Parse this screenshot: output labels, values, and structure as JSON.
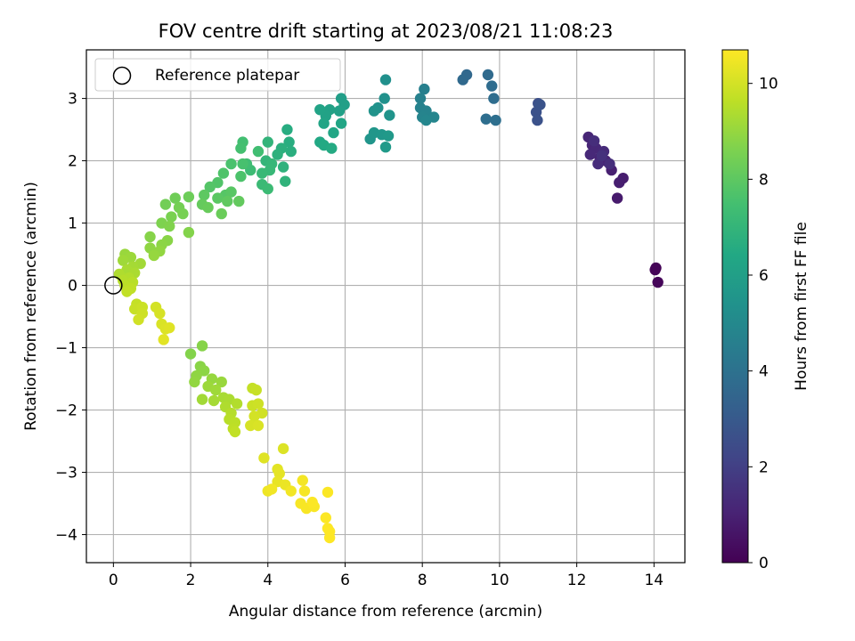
{
  "chart_data": {
    "type": "scatter",
    "title": "FOV centre drift starting at 2023/08/21 11:08:23",
    "xlabel": "Angular distance from reference (arcmin)",
    "ylabel": "Rotation from reference (arcmin)",
    "colorbar_label": "Hours from first FF file",
    "xlim": [
      -0.7,
      14.8
    ],
    "ylim": [
      -4.45,
      3.78
    ],
    "clim": [
      0,
      10.7
    ],
    "colormap": "viridis",
    "xticks": [
      0,
      2,
      4,
      6,
      8,
      10,
      12,
      14
    ],
    "yticks": [
      -4,
      -3,
      -2,
      -1,
      0,
      1,
      2,
      3
    ],
    "cticks": [
      0,
      2,
      4,
      6,
      8,
      10
    ],
    "grid": true,
    "legend": {
      "placement": "upper-left",
      "entries": [
        {
          "label": "Reference platepar",
          "marker": "hollow-circle"
        }
      ]
    },
    "reference_point": {
      "x": 0,
      "y": 0
    },
    "points": [
      {
        "x": 14.05,
        "y": 0.28,
        "t": 0.05
      },
      {
        "x": 14.03,
        "y": 0.25,
        "t": 0.1
      },
      {
        "x": 14.1,
        "y": 0.05,
        "t": 0.15
      },
      {
        "x": 13.05,
        "y": 1.4,
        "t": 0.8
      },
      {
        "x": 13.2,
        "y": 1.72,
        "t": 0.85
      },
      {
        "x": 13.1,
        "y": 1.65,
        "t": 0.9
      },
      {
        "x": 12.9,
        "y": 1.85,
        "t": 0.95
      },
      {
        "x": 12.75,
        "y": 2.0,
        "t": 1.0
      },
      {
        "x": 12.6,
        "y": 2.05,
        "t": 1.05
      },
      {
        "x": 12.4,
        "y": 2.25,
        "t": 1.1
      },
      {
        "x": 12.3,
        "y": 2.38,
        "t": 1.15
      },
      {
        "x": 12.5,
        "y": 2.2,
        "t": 1.2
      },
      {
        "x": 12.35,
        "y": 2.1,
        "t": 1.25
      },
      {
        "x": 12.7,
        "y": 2.15,
        "t": 1.3
      },
      {
        "x": 12.55,
        "y": 1.95,
        "t": 1.35
      },
      {
        "x": 12.45,
        "y": 2.32,
        "t": 1.4
      },
      {
        "x": 12.85,
        "y": 1.95,
        "t": 1.45
      },
      {
        "x": 12.65,
        "y": 2.08,
        "t": 1.5
      },
      {
        "x": 11.0,
        "y": 2.92,
        "t": 2.6
      },
      {
        "x": 10.95,
        "y": 2.78,
        "t": 2.65
      },
      {
        "x": 10.98,
        "y": 2.65,
        "t": 2.7
      },
      {
        "x": 11.05,
        "y": 2.9,
        "t": 2.75
      },
      {
        "x": 9.15,
        "y": 3.38,
        "t": 3.6
      },
      {
        "x": 9.05,
        "y": 3.3,
        "t": 3.65
      },
      {
        "x": 9.7,
        "y": 3.38,
        "t": 3.7
      },
      {
        "x": 9.8,
        "y": 3.2,
        "t": 3.75
      },
      {
        "x": 9.85,
        "y": 3.0,
        "t": 3.8
      },
      {
        "x": 9.65,
        "y": 2.67,
        "t": 3.85
      },
      {
        "x": 9.9,
        "y": 2.65,
        "t": 3.9
      },
      {
        "x": 8.05,
        "y": 3.15,
        "t": 4.6
      },
      {
        "x": 7.95,
        "y": 3.0,
        "t": 4.65
      },
      {
        "x": 7.95,
        "y": 2.85,
        "t": 4.7
      },
      {
        "x": 8.1,
        "y": 2.8,
        "t": 4.75
      },
      {
        "x": 8.0,
        "y": 2.7,
        "t": 4.8
      },
      {
        "x": 8.3,
        "y": 2.7,
        "t": 4.85
      },
      {
        "x": 8.1,
        "y": 2.65,
        "t": 4.9
      },
      {
        "x": 7.05,
        "y": 3.3,
        "t": 5.3
      },
      {
        "x": 7.02,
        "y": 3.0,
        "t": 5.35
      },
      {
        "x": 6.85,
        "y": 2.85,
        "t": 5.4
      },
      {
        "x": 6.75,
        "y": 2.8,
        "t": 5.45
      },
      {
        "x": 7.15,
        "y": 2.73,
        "t": 5.5
      },
      {
        "x": 6.65,
        "y": 2.35,
        "t": 5.55
      },
      {
        "x": 6.75,
        "y": 2.45,
        "t": 5.6
      },
      {
        "x": 6.95,
        "y": 2.42,
        "t": 5.65
      },
      {
        "x": 7.12,
        "y": 2.4,
        "t": 5.7
      },
      {
        "x": 7.05,
        "y": 2.22,
        "t": 5.75
      },
      {
        "x": 5.9,
        "y": 3.0,
        "t": 5.95
      },
      {
        "x": 5.98,
        "y": 2.9,
        "t": 6.0
      },
      {
        "x": 5.85,
        "y": 2.8,
        "t": 6.05
      },
      {
        "x": 5.6,
        "y": 2.82,
        "t": 6.1
      },
      {
        "x": 5.5,
        "y": 2.72,
        "t": 6.15
      },
      {
        "x": 5.35,
        "y": 2.82,
        "t": 6.2
      },
      {
        "x": 5.45,
        "y": 2.6,
        "t": 6.25
      },
      {
        "x": 5.9,
        "y": 2.6,
        "t": 6.3
      },
      {
        "x": 5.7,
        "y": 2.45,
        "t": 6.35
      },
      {
        "x": 5.35,
        "y": 2.3,
        "t": 6.4
      },
      {
        "x": 5.45,
        "y": 2.25,
        "t": 6.45
      },
      {
        "x": 5.65,
        "y": 2.2,
        "t": 6.5
      },
      {
        "x": 4.5,
        "y": 2.5,
        "t": 6.6
      },
      {
        "x": 4.55,
        "y": 2.3,
        "t": 6.65
      },
      {
        "x": 4.6,
        "y": 2.15,
        "t": 6.7
      },
      {
        "x": 4.35,
        "y": 2.2,
        "t": 6.75
      },
      {
        "x": 4.25,
        "y": 2.1,
        "t": 6.8
      },
      {
        "x": 4.4,
        "y": 1.9,
        "t": 6.85
      },
      {
        "x": 4.45,
        "y": 1.67,
        "t": 6.9
      },
      {
        "x": 4.0,
        "y": 2.3,
        "t": 6.95
      },
      {
        "x": 3.95,
        "y": 2.0,
        "t": 7.0
      },
      {
        "x": 4.1,
        "y": 1.95,
        "t": 7.05
      },
      {
        "x": 4.05,
        "y": 1.85,
        "t": 7.1
      },
      {
        "x": 3.85,
        "y": 1.8,
        "t": 7.15
      },
      {
        "x": 3.85,
        "y": 1.62,
        "t": 7.2
      },
      {
        "x": 4.0,
        "y": 1.55,
        "t": 7.25
      },
      {
        "x": 3.55,
        "y": 1.85,
        "t": 7.3
      },
      {
        "x": 3.45,
        "y": 1.95,
        "t": 7.35
      },
      {
        "x": 3.75,
        "y": 2.15,
        "t": 7.4
      },
      {
        "x": 3.35,
        "y": 2.3,
        "t": 7.45
      },
      {
        "x": 3.3,
        "y": 2.2,
        "t": 7.5
      },
      {
        "x": 3.35,
        "y": 1.95,
        "t": 7.55
      },
      {
        "x": 3.05,
        "y": 1.95,
        "t": 7.6
      },
      {
        "x": 3.3,
        "y": 1.75,
        "t": 7.65
      },
      {
        "x": 2.85,
        "y": 1.8,
        "t": 7.7
      },
      {
        "x": 2.7,
        "y": 1.65,
        "t": 7.75
      },
      {
        "x": 2.5,
        "y": 1.58,
        "t": 7.8
      },
      {
        "x": 2.9,
        "y": 1.45,
        "t": 7.85
      },
      {
        "x": 3.05,
        "y": 1.5,
        "t": 7.9
      },
      {
        "x": 2.7,
        "y": 1.4,
        "t": 7.95
      },
      {
        "x": 2.35,
        "y": 1.45,
        "t": 8.0
      },
      {
        "x": 2.95,
        "y": 1.35,
        "t": 8.05
      },
      {
        "x": 3.25,
        "y": 1.35,
        "t": 8.1
      },
      {
        "x": 2.3,
        "y": 1.3,
        "t": 8.15
      },
      {
        "x": 2.45,
        "y": 1.25,
        "t": 8.2
      },
      {
        "x": 2.8,
        "y": 1.15,
        "t": 8.25
      },
      {
        "x": 1.95,
        "y": 1.42,
        "t": 8.3
      },
      {
        "x": 1.6,
        "y": 1.4,
        "t": 8.35
      },
      {
        "x": 1.35,
        "y": 1.3,
        "t": 8.4
      },
      {
        "x": 1.7,
        "y": 1.25,
        "t": 8.45
      },
      {
        "x": 1.8,
        "y": 1.15,
        "t": 8.5
      },
      {
        "x": 1.5,
        "y": 1.1,
        "t": 8.55
      },
      {
        "x": 1.25,
        "y": 1.0,
        "t": 8.6
      },
      {
        "x": 1.45,
        "y": 0.95,
        "t": 8.65
      },
      {
        "x": 1.95,
        "y": 0.85,
        "t": 8.7
      },
      {
        "x": 0.95,
        "y": 0.78,
        "t": 8.75
      },
      {
        "x": 1.4,
        "y": 0.72,
        "t": 8.8
      },
      {
        "x": 1.25,
        "y": 0.65,
        "t": 8.85
      },
      {
        "x": 0.95,
        "y": 0.6,
        "t": 8.9
      },
      {
        "x": 1.2,
        "y": 0.55,
        "t": 8.95
      },
      {
        "x": 1.05,
        "y": 0.48,
        "t": 9.0
      },
      {
        "x": 0.3,
        "y": 0.5,
        "t": 9.05
      },
      {
        "x": 0.45,
        "y": 0.45,
        "t": 9.1
      },
      {
        "x": 0.25,
        "y": 0.4,
        "t": 9.15
      },
      {
        "x": 0.7,
        "y": 0.35,
        "t": 9.2
      },
      {
        "x": 0.5,
        "y": 0.3,
        "t": 9.25
      },
      {
        "x": 0.35,
        "y": 0.25,
        "t": 9.3
      },
      {
        "x": 0.55,
        "y": 0.2,
        "t": 9.35
      },
      {
        "x": 0.15,
        "y": 0.18,
        "t": 9.4
      },
      {
        "x": 0.4,
        "y": 0.12,
        "t": 9.45
      },
      {
        "x": 0.25,
        "y": 0.08,
        "t": 9.5
      },
      {
        "x": 0.5,
        "y": 0.05,
        "t": 9.55
      },
      {
        "x": 0.3,
        "y": 0.0,
        "t": 9.6
      },
      {
        "x": 0.45,
        "y": -0.05,
        "t": 9.65
      },
      {
        "x": 0.35,
        "y": -0.1,
        "t": 9.7
      },
      {
        "x": 0.6,
        "y": -0.3,
        "t": 9.75
      },
      {
        "x": 0.55,
        "y": -0.38,
        "t": 9.8
      },
      {
        "x": 0.75,
        "y": -0.35,
        "t": 9.85
      },
      {
        "x": 0.75,
        "y": -0.45,
        "t": 9.9
      },
      {
        "x": 0.65,
        "y": -0.55,
        "t": 9.95
      },
      {
        "x": 1.1,
        "y": -0.35,
        "t": 10.0
      },
      {
        "x": 1.2,
        "y": -0.45,
        "t": 10.05
      },
      {
        "x": 1.25,
        "y": -0.62,
        "t": 10.1
      },
      {
        "x": 1.35,
        "y": -0.7,
        "t": 10.15
      },
      {
        "x": 1.45,
        "y": -0.68,
        "t": 10.2
      },
      {
        "x": 1.3,
        "y": -0.87,
        "t": 10.25
      },
      {
        "x": 2.0,
        "y": -1.1,
        "t": 8.7
      },
      {
        "x": 2.3,
        "y": -0.97,
        "t": 8.75
      },
      {
        "x": 2.25,
        "y": -1.3,
        "t": 8.8
      },
      {
        "x": 2.35,
        "y": -1.37,
        "t": 8.85
      },
      {
        "x": 2.15,
        "y": -1.45,
        "t": 8.9
      },
      {
        "x": 2.1,
        "y": -1.55,
        "t": 8.95
      },
      {
        "x": 2.55,
        "y": -1.5,
        "t": 9.0
      },
      {
        "x": 2.8,
        "y": -1.55,
        "t": 9.05
      },
      {
        "x": 2.45,
        "y": -1.62,
        "t": 9.1
      },
      {
        "x": 2.65,
        "y": -1.68,
        "t": 9.15
      },
      {
        "x": 2.3,
        "y": -1.83,
        "t": 9.2
      },
      {
        "x": 2.6,
        "y": -1.85,
        "t": 9.25
      },
      {
        "x": 2.85,
        "y": -1.8,
        "t": 9.3
      },
      {
        "x": 3.0,
        "y": -1.83,
        "t": 9.35
      },
      {
        "x": 2.9,
        "y": -1.95,
        "t": 9.4
      },
      {
        "x": 3.2,
        "y": -1.9,
        "t": 9.45
      },
      {
        "x": 3.05,
        "y": -2.05,
        "t": 9.5
      },
      {
        "x": 3.0,
        "y": -2.15,
        "t": 9.55
      },
      {
        "x": 3.15,
        "y": -2.2,
        "t": 9.6
      },
      {
        "x": 3.1,
        "y": -2.3,
        "t": 9.65
      },
      {
        "x": 3.15,
        "y": -2.35,
        "t": 9.7
      },
      {
        "x": 3.6,
        "y": -1.65,
        "t": 9.75
      },
      {
        "x": 3.7,
        "y": -1.68,
        "t": 9.8
      },
      {
        "x": 3.6,
        "y": -1.93,
        "t": 9.85
      },
      {
        "x": 3.75,
        "y": -1.9,
        "t": 9.9
      },
      {
        "x": 3.85,
        "y": -2.05,
        "t": 9.95
      },
      {
        "x": 3.65,
        "y": -2.1,
        "t": 10.0
      },
      {
        "x": 3.55,
        "y": -2.25,
        "t": 10.05
      },
      {
        "x": 3.75,
        "y": -2.25,
        "t": 10.1
      },
      {
        "x": 4.4,
        "y": -2.62,
        "t": 10.15
      },
      {
        "x": 3.9,
        "y": -2.77,
        "t": 10.2
      },
      {
        "x": 4.25,
        "y": -2.95,
        "t": 10.25
      },
      {
        "x": 4.3,
        "y": -3.02,
        "t": 10.3
      },
      {
        "x": 4.25,
        "y": -3.15,
        "t": 10.35
      },
      {
        "x": 4.45,
        "y": -3.2,
        "t": 10.4
      },
      {
        "x": 4.0,
        "y": -3.3,
        "t": 10.45
      },
      {
        "x": 4.1,
        "y": -3.27,
        "t": 10.5
      },
      {
        "x": 4.6,
        "y": -3.3,
        "t": 10.52
      },
      {
        "x": 4.9,
        "y": -3.13,
        "t": 10.55
      },
      {
        "x": 4.95,
        "y": -3.3,
        "t": 10.58
      },
      {
        "x": 4.85,
        "y": -3.5,
        "t": 10.6
      },
      {
        "x": 5.0,
        "y": -3.58,
        "t": 10.62
      },
      {
        "x": 5.2,
        "y": -3.55,
        "t": 10.64
      },
      {
        "x": 5.15,
        "y": -3.48,
        "t": 10.66
      },
      {
        "x": 5.55,
        "y": -3.32,
        "t": 10.67
      },
      {
        "x": 5.5,
        "y": -3.73,
        "t": 10.68
      },
      {
        "x": 5.55,
        "y": -3.9,
        "t": 10.69
      },
      {
        "x": 5.6,
        "y": -3.95,
        "t": 10.7
      },
      {
        "x": 5.6,
        "y": -4.05,
        "t": 10.7
      }
    ]
  }
}
